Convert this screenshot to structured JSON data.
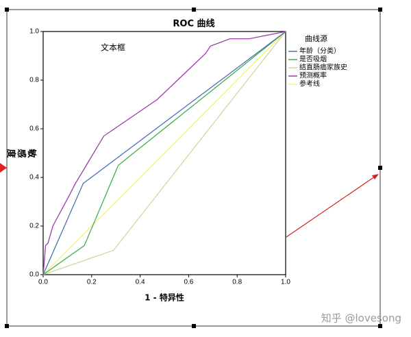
{
  "chart_data": {
    "type": "line",
    "title": "ROC 曲线",
    "x_label": "1 - 特异性",
    "y_label": "敏感度",
    "annotation": "文本框",
    "legend_title": "曲线源",
    "watermark": "知乎 @lovesong",
    "xlim": [
      0,
      1
    ],
    "ylim": [
      0,
      1
    ],
    "xticks": [
      {
        "value": 0,
        "label": "0.0"
      },
      {
        "value": 0.2,
        "label": "0.2"
      },
      {
        "value": 0.4,
        "label": "0.4"
      },
      {
        "value": 0.6,
        "label": "0.6"
      },
      {
        "value": 0.8,
        "label": "0.8"
      },
      {
        "value": 1,
        "label": "1.0"
      }
    ],
    "yticks": [
      {
        "value": 0,
        "label": "0.0"
      },
      {
        "value": 0.2,
        "label": "0.2"
      },
      {
        "value": 0.4,
        "label": "0.4"
      },
      {
        "value": 0.6,
        "label": "0.6"
      },
      {
        "value": 0.8,
        "label": "0.8"
      },
      {
        "value": 1,
        "label": "1.0"
      }
    ],
    "series": [
      {
        "name": "年龄（分类）",
        "color": "#4a6fb5",
        "x": [
          0,
          0.165,
          1
        ],
        "values": [
          0,
          0.375,
          1
        ]
      },
      {
        "name": "是否吸烟",
        "color": "#3db04a",
        "x": [
          0,
          0.17,
          0.31,
          1
        ],
        "values": [
          0,
          0.12,
          0.45,
          1
        ]
      },
      {
        "name": "结直肠癌家族史",
        "color": "#d4d4a0",
        "x": [
          0,
          0.29,
          1
        ],
        "values": [
          0,
          0.1,
          1
        ]
      },
      {
        "name": "预测概率",
        "color": "#9b3aa8",
        "x": [
          0,
          0.01,
          0.02,
          0.04,
          0.11,
          0.13,
          0.25,
          0.47,
          0.67,
          0.69,
          0.77,
          0.85,
          1
        ],
        "values": [
          0,
          0.12,
          0.13,
          0.2,
          0.33,
          0.37,
          0.57,
          0.72,
          0.91,
          0.94,
          0.97,
          0.97,
          1
        ]
      },
      {
        "name": "参考线",
        "color": "#f2f27a",
        "x": [
          0,
          1
        ],
        "values": [
          0,
          1
        ]
      }
    ]
  }
}
